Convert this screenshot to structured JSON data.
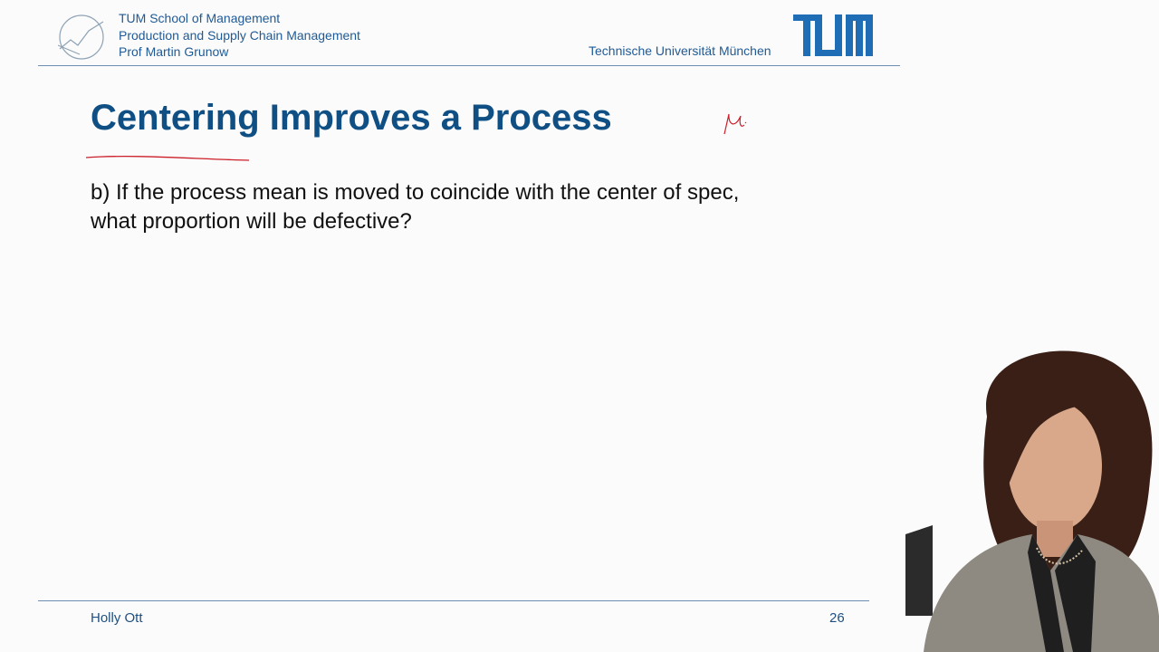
{
  "header": {
    "school": "TUM School of Management",
    "chair": "Production and Supply Chain Management",
    "professor": "Prof Martin Grunow",
    "university": "Technische Universität München",
    "logo_text": "TUM"
  },
  "slide": {
    "title": "Centering Improves a Process",
    "question_line1": "b) If the process mean is moved to coincide with the center of spec,",
    "question_line2": "what proportion will be defective?"
  },
  "footer": {
    "author": "Holly Ott",
    "page_number": "26"
  },
  "colors": {
    "brand_blue": "#0f4f84",
    "tum_blue": "#1f6db5",
    "annotation_red": "#cc1f2a"
  }
}
